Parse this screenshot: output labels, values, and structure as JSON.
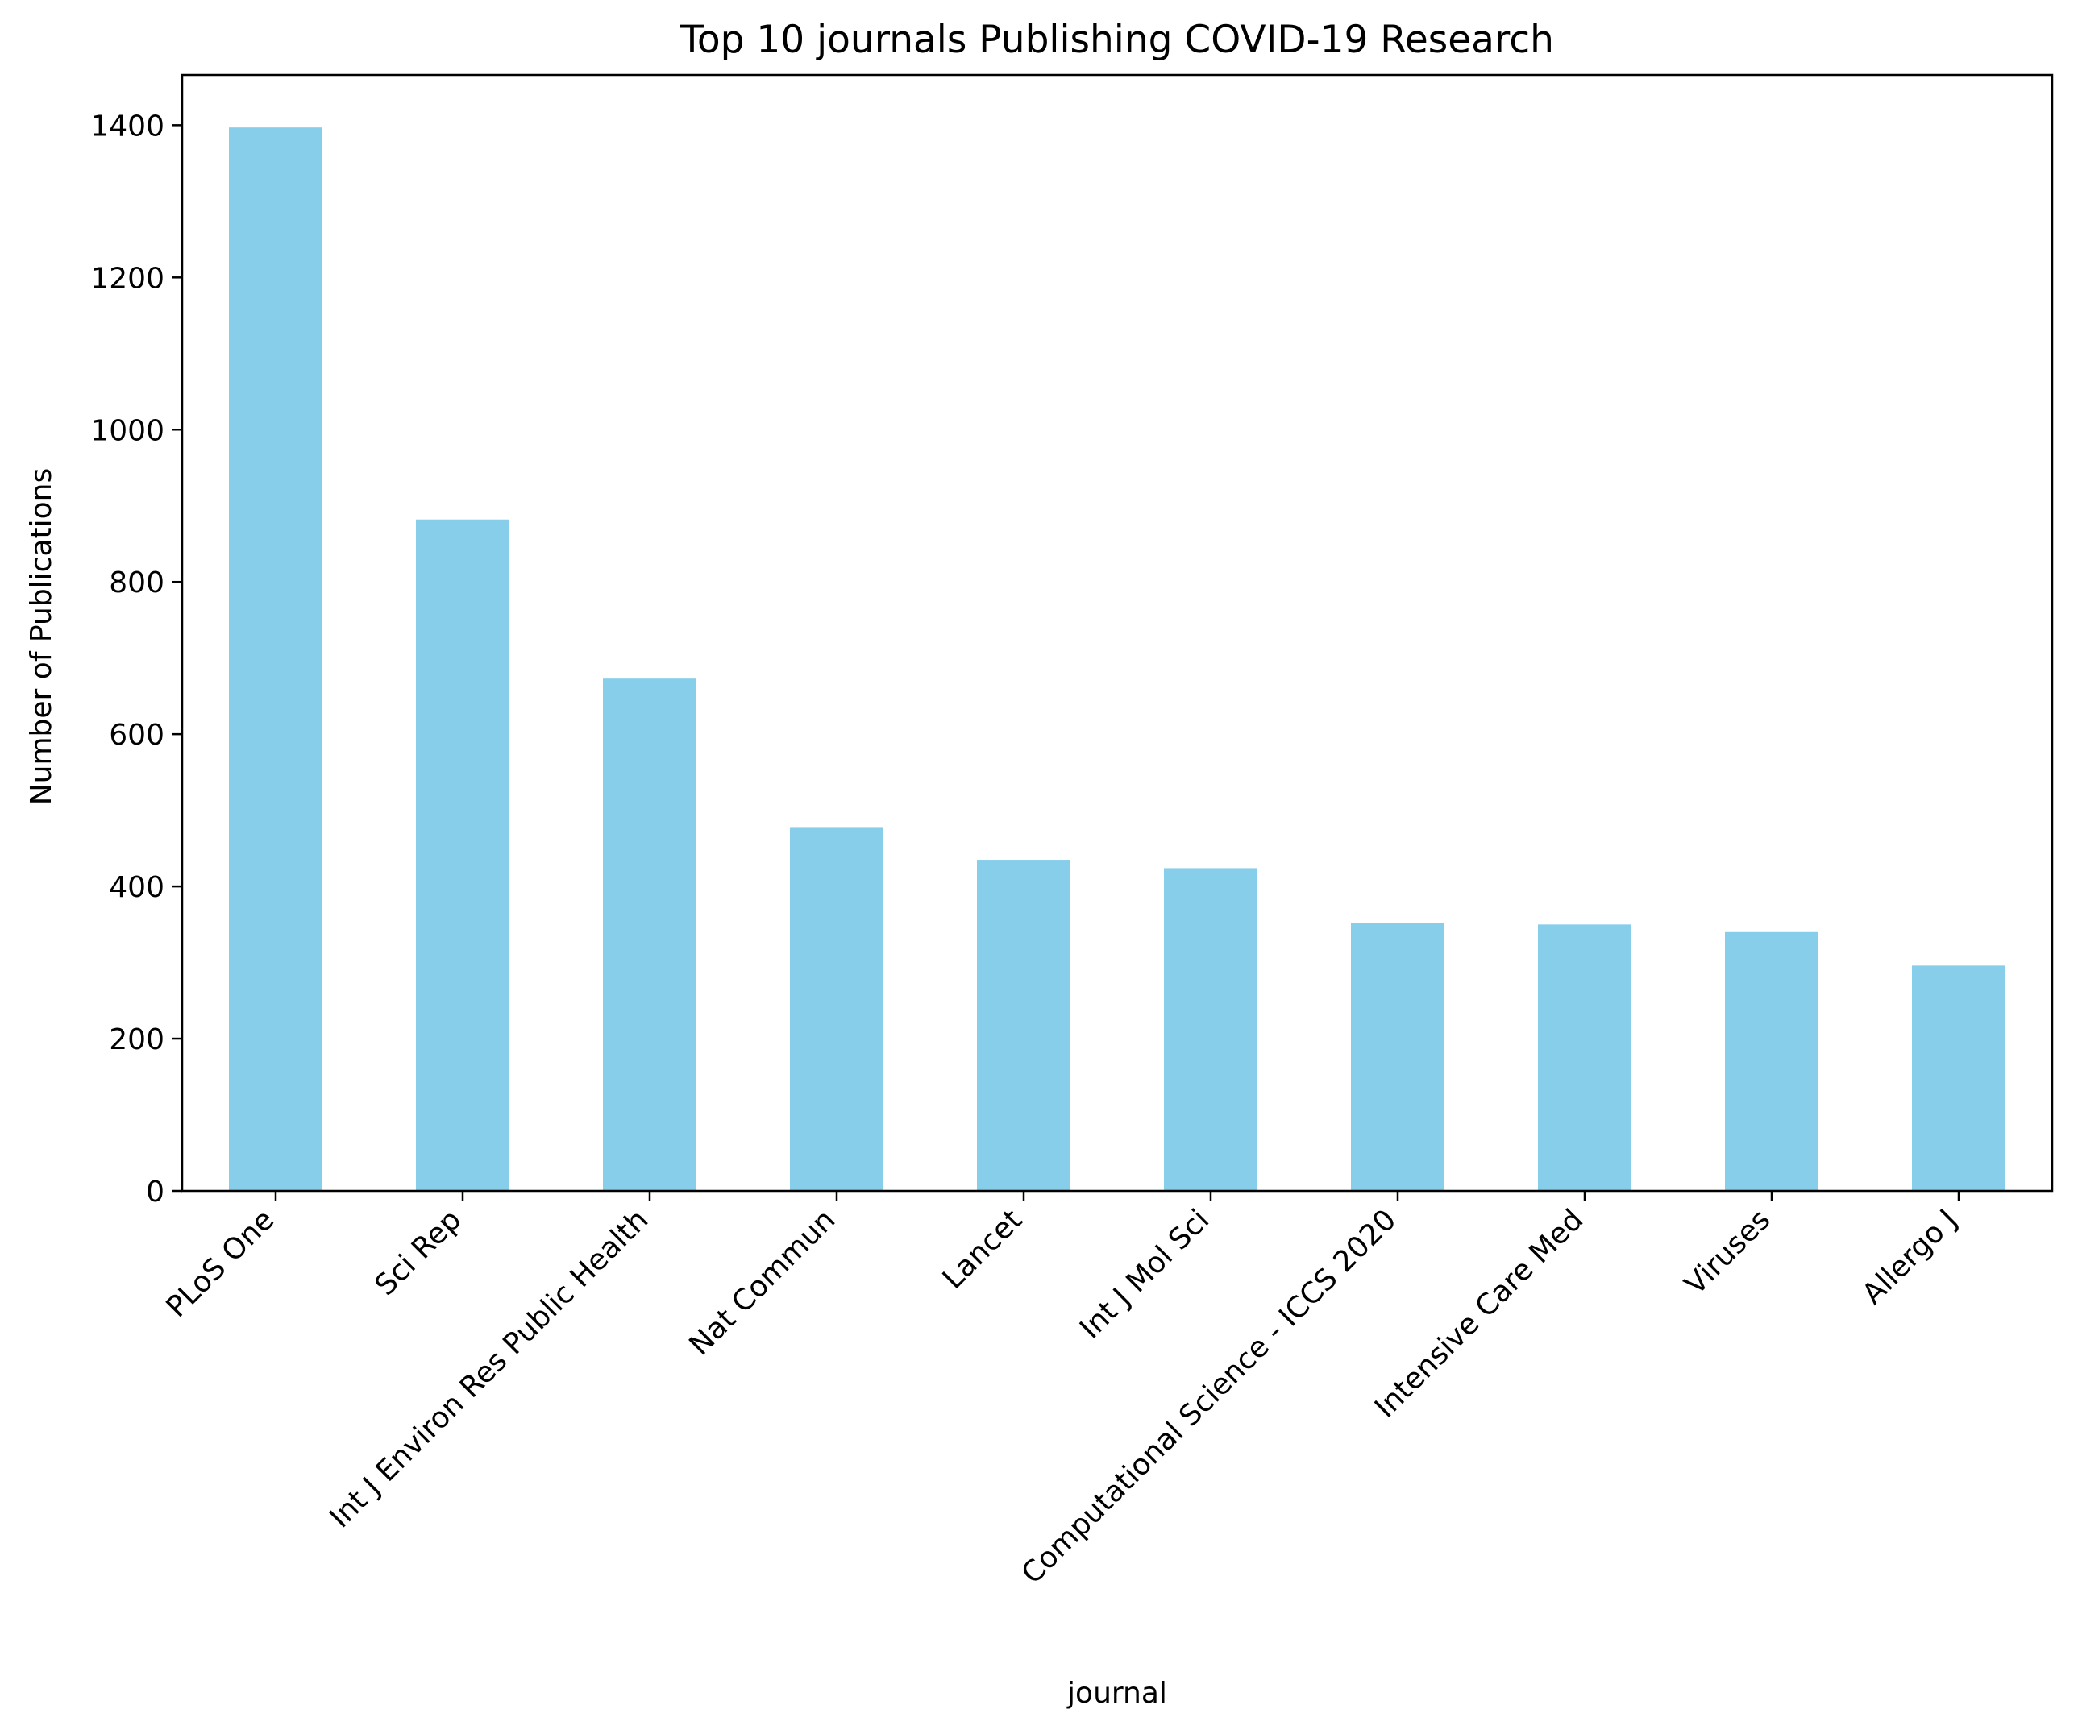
{
  "chart_data": {
    "type": "bar",
    "title": "Top 10 journals Publishing COVID-19 Research",
    "xlabel": "journal",
    "ylabel": "Number of Publications",
    "categories": [
      "PLoS One",
      "Sci Rep",
      "Int J Environ Res Public Health",
      "Nat Commun",
      "Lancet",
      "Int J Mol Sci",
      "Computational Science - ICCS 2020",
      "Intensive Care Med",
      "Viruses",
      "Allergo J"
    ],
    "values": [
      1397,
      882,
      673,
      478,
      435,
      424,
      352,
      350,
      340,
      296
    ],
    "ylim": [
      0,
      1466
    ],
    "yticks": [
      0,
      200,
      400,
      600,
      800,
      1000,
      1200,
      1400
    ],
    "bar_color": "#87CEEB",
    "grid": false,
    "legend": "none"
  }
}
